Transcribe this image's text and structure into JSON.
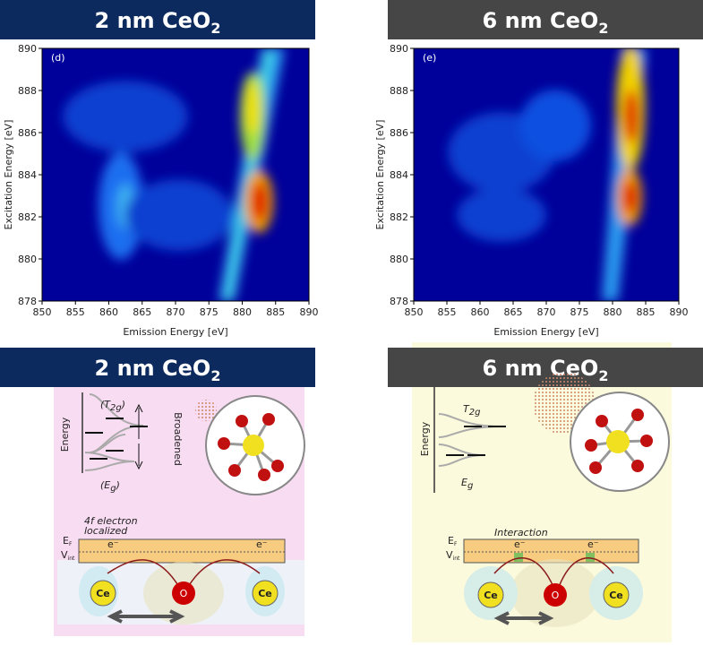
{
  "headers": [
    {
      "text": "2 nm CeO",
      "sub": "2"
    },
    {
      "text": "6 nm CeO",
      "sub": "2"
    },
    {
      "text": "2 nm CeO",
      "sub": "2"
    },
    {
      "text": "6 nm CeO",
      "sub": "2"
    }
  ],
  "maps": [
    {
      "label": "(d)",
      "xlabel": "Emission Energy [eV]",
      "ylabel": "Excitation Energy [eV]",
      "xlim": [
        850,
        890
      ],
      "xticks": [
        850,
        855,
        860,
        865,
        870,
        875,
        880,
        885,
        890
      ],
      "ylim": [
        878,
        890
      ],
      "yticks": [
        878,
        880,
        882,
        884,
        886,
        888,
        890
      ]
    },
    {
      "label": "(e)",
      "xlabel": "Emission Energy [eV]",
      "ylabel": "Excitation Energy [eV]",
      "xlim": [
        850,
        890
      ],
      "xticks": [
        850,
        855,
        860,
        865,
        870,
        875,
        880,
        885,
        890
      ],
      "ylim": [
        878,
        890
      ],
      "yticks": [
        878,
        880,
        882,
        884,
        886,
        888,
        890
      ]
    }
  ],
  "diagrams": [
    {
      "t2g": {
        "pre": "(T",
        "sub": "2g",
        "post": ")"
      },
      "eg": {
        "pre": "(E",
        "sub": "g",
        "post": ")"
      },
      "energy": "Energy",
      "broadened": "Broadened",
      "band_note": [
        "4f electron",
        "localized"
      ],
      "ef": {
        "main": "E",
        "sub": "F"
      },
      "vint": {
        "main": "V",
        "sub": "int"
      },
      "electrons": [
        "e⁻",
        "e⁻"
      ],
      "atoms": [
        "Ce",
        "O",
        "Ce"
      ]
    },
    {
      "t2g": {
        "pre": "T",
        "sub": "2g",
        "post": ""
      },
      "eg": {
        "pre": "E",
        "sub": "g",
        "post": ""
      },
      "energy": "Energy",
      "band_note": [
        "Interaction"
      ],
      "ef": {
        "main": "E",
        "sub": "F"
      },
      "vint": {
        "main": "V",
        "sub": "int"
      },
      "electrons": [
        "e⁻",
        "e⁻"
      ],
      "atoms": [
        "Ce",
        "O",
        "Ce"
      ]
    }
  ]
}
